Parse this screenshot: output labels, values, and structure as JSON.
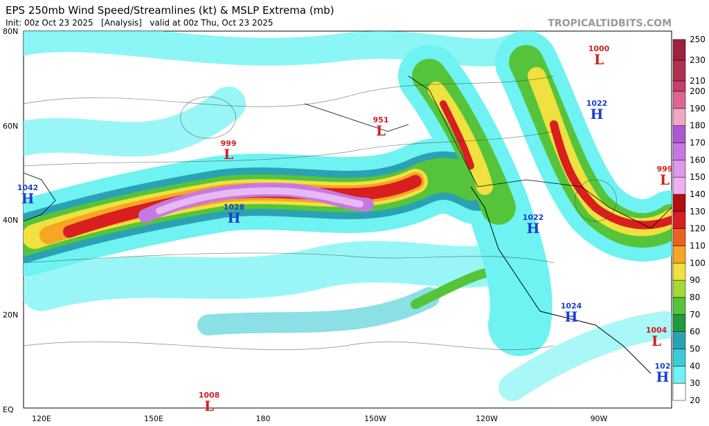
{
  "header": {
    "title": "EPS 250mb Wind Speed/Streamlines (kt) & MSLP Extrema (mb)",
    "subtitle": "Init: 00z Oct 23 2025   [Analysis]   valid at 00z Thu, Oct 23 2025",
    "watermark": "TROPICALTIDBITS.COM"
  },
  "map": {
    "lat_labels": [
      "80N",
      "60N",
      "40N",
      "20N",
      "EQ"
    ],
    "lon_labels": [
      "120E",
      "150E",
      "180",
      "150W",
      "120W",
      "90W"
    ],
    "centers": [
      {
        "type": "L",
        "value": 1000
      },
      {
        "type": "L",
        "value": 951
      },
      {
        "type": "L",
        "value": 999
      },
      {
        "type": "H",
        "value": 1022
      },
      {
        "type": "L",
        "value": 999
      },
      {
        "type": "H",
        "value": 1042
      },
      {
        "type": "H",
        "value": 1028
      },
      {
        "type": "H",
        "value": 1022
      },
      {
        "type": "H",
        "value": 1024
      },
      {
        "type": "L",
        "value": 1004
      },
      {
        "type": "H",
        "value": 102
      },
      {
        "type": "L",
        "value": 1008
      }
    ]
  },
  "colorbar": {
    "ticks": [
      20,
      30,
      40,
      50,
      60,
      70,
      80,
      90,
      100,
      110,
      120,
      130,
      140,
      150,
      160,
      170,
      180,
      190,
      200,
      210,
      230,
      250
    ],
    "colors": [
      "#ffffff",
      "#6ff2f2",
      "#3ccbd4",
      "#2aa2b4",
      "#1f9a3c",
      "#55c43a",
      "#a8d93a",
      "#f0e040",
      "#f5a623",
      "#e8641e",
      "#d81e1e",
      "#b01010",
      "#f0b0f0",
      "#dc98ea",
      "#c678e2",
      "#ac58d2",
      "#f2a6c4",
      "#e06492",
      "#c83c6c",
      "#b03050",
      "#a02040"
    ]
  }
}
